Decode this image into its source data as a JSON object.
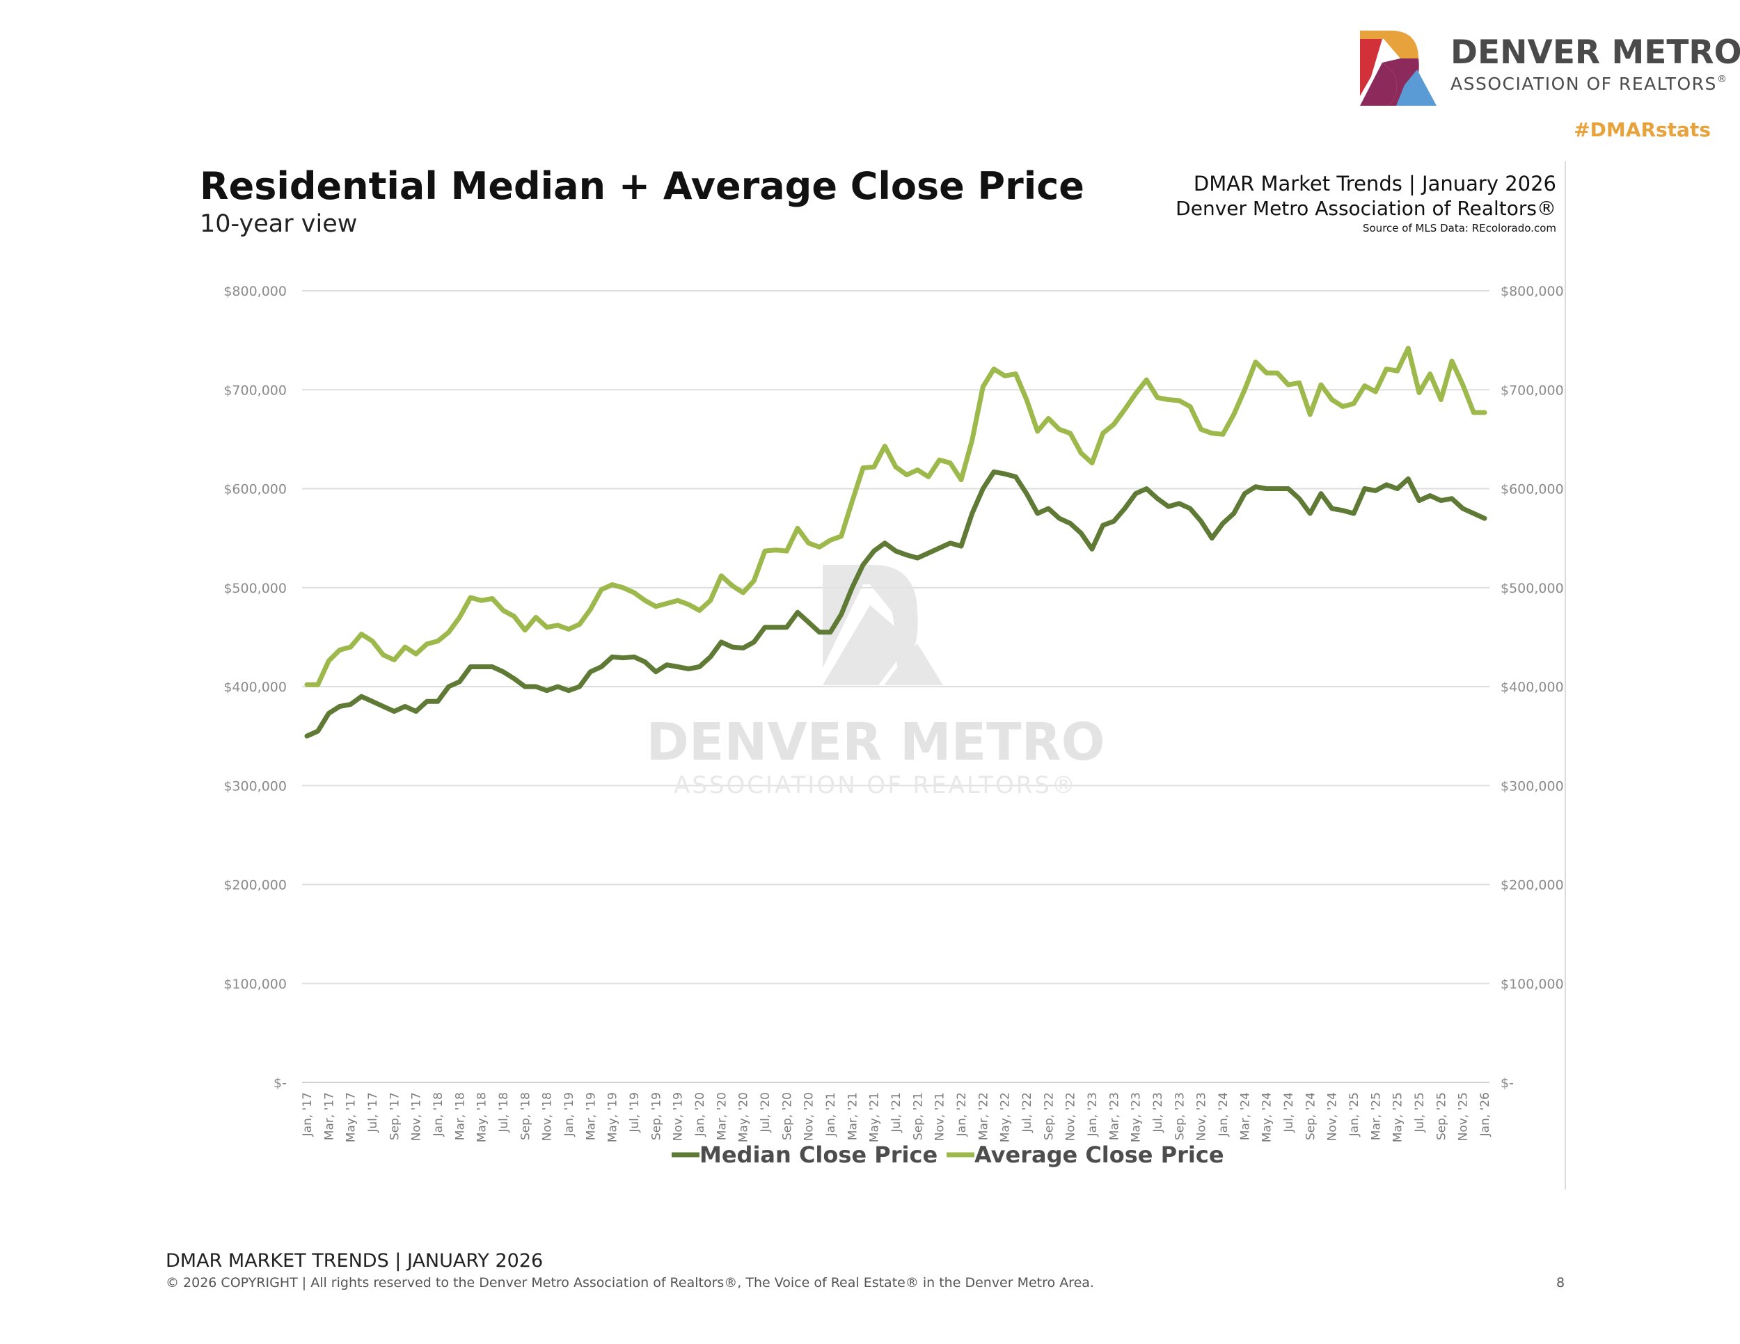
{
  "brand": {
    "name_line1": "DENVER METRO",
    "name_line2": "ASSOCIATION OF REALTORS",
    "registered_mark": "®",
    "hashtag": "#DMARstats",
    "colors": {
      "orange": "#e7a23b",
      "red": "#d2313a",
      "plum": "#8b2a5b",
      "blue": "#5b9bd5",
      "text": "#4a4a4a"
    }
  },
  "header": {
    "title": "Residential Median + Average Close Price",
    "subtitle": "10-year view",
    "source_line1": "DMAR Market Trends | January 2026",
    "source_line2": "Denver Metro Association of Realtors®",
    "source_line3": "Source of MLS Data: REcolorado.com"
  },
  "watermark": {
    "line1": "DENVER METRO",
    "line2": "ASSOCIATION OF REALTORS®"
  },
  "chart_data": {
    "type": "line",
    "title": "Residential Median + Average Close Price",
    "subtitle": "10-year view",
    "xlabel": "",
    "ylabel": "",
    "ylim": [
      0,
      800000
    ],
    "y_ticks": [
      0,
      100000,
      200000,
      300000,
      400000,
      500000,
      600000,
      700000,
      800000
    ],
    "y_tick_labels": [
      "$-",
      "$100,000",
      "$200,000",
      "$300,000",
      "$400,000",
      "$500,000",
      "$600,000",
      "$700,000",
      "$800,000"
    ],
    "dual_y_axis": true,
    "grid": true,
    "legend_position": "bottom",
    "x_labels": [
      "Jan, '17",
      "Mar, '17",
      "May, '17",
      "Jul, '17",
      "Sep, '17",
      "Nov, '17",
      "Jan, '18",
      "Mar, '18",
      "May, '18",
      "Jul, '18",
      "Sep, '18",
      "Nov, '18",
      "Jan, '19",
      "Mar, '19",
      "May, '19",
      "Jul, '19",
      "Sep, '19",
      "Nov, '19",
      "Jan, '20",
      "Mar, '20",
      "May, '20",
      "Jul, '20",
      "Sep, '20",
      "Nov, '20",
      "Jan, '21",
      "Mar, '21",
      "May, '21",
      "Jul, '21",
      "Sep, '21",
      "Nov, '21",
      "Jan, '22",
      "Mar, '22",
      "May, '22",
      "Jul, '22",
      "Sep, '22",
      "Nov, '22",
      "Jan, '23",
      "Mar, '23",
      "May, '23",
      "Jul, '23",
      "Sep, '23",
      "Nov, '23",
      "Jan, '24",
      "Mar, '24",
      "May, '24",
      "Jul, '24",
      "Sep, '24",
      "Nov, '24",
      "Jan, '25",
      "Mar, '25",
      "May, '25",
      "Jul, '25",
      "Sep, '25",
      "Nov, '25",
      "Jan, '26"
    ],
    "x_start": "Jan 2017",
    "x_end": "Jan 2026",
    "months": 109,
    "series": [
      {
        "name": "Median Close Price",
        "color": "#5e7a34",
        "values": [
          350000,
          355000,
          373000,
          380000,
          382000,
          390000,
          385000,
          380000,
          375000,
          380000,
          375000,
          385000,
          385000,
          400000,
          405000,
          420000,
          420000,
          420000,
          415000,
          408000,
          400000,
          400000,
          396000,
          400000,
          396000,
          400000,
          415000,
          420000,
          430000,
          429000,
          430000,
          425000,
          415000,
          422000,
          420000,
          418000,
          420000,
          430000,
          445000,
          440000,
          439000,
          445000,
          460000,
          460000,
          460000,
          475000,
          465000,
          455000,
          455000,
          473000,
          500000,
          523000,
          537000,
          545000,
          537000,
          533000,
          530000,
          535000,
          540000,
          545000,
          542000,
          575000,
          600000,
          617000,
          615000,
          612000,
          595000,
          575000,
          580000,
          570000,
          565000,
          555000,
          539000,
          563000,
          567000,
          580000,
          595000,
          600000,
          590000,
          582000,
          585000,
          580000,
          567000,
          550000,
          565000,
          575000,
          595000,
          602000,
          600000,
          600000,
          600000,
          590000,
          575000,
          595000,
          580000,
          578000,
          575000,
          600000,
          598000,
          604000,
          600000,
          610000,
          588000,
          593000,
          588000,
          590000,
          580000,
          575000,
          570000
        ]
      },
      {
        "name": "Average Close Price",
        "color": "#9db84b",
        "values": [
          402000,
          402000,
          426000,
          437000,
          440000,
          453000,
          446000,
          432000,
          427000,
          440000,
          433000,
          443000,
          446000,
          455000,
          470000,
          490000,
          487000,
          489000,
          477000,
          471000,
          457000,
          470000,
          460000,
          462000,
          458000,
          463000,
          478000,
          498000,
          503000,
          500000,
          495000,
          487000,
          481000,
          484000,
          487000,
          483000,
          477000,
          487000,
          512000,
          502000,
          495000,
          507000,
          537000,
          538000,
          537000,
          560000,
          545000,
          541000,
          548000,
          552000,
          587000,
          621000,
          622000,
          643000,
          622000,
          614000,
          619000,
          612000,
          629000,
          626000,
          609000,
          649000,
          703000,
          721000,
          714000,
          716000,
          690000,
          658000,
          671000,
          660000,
          656000,
          636000,
          626000,
          656000,
          665000,
          680000,
          696000,
          710000,
          692000,
          690000,
          689000,
          683000,
          660000,
          656000,
          655000,
          675000,
          700000,
          728000,
          717000,
          717000,
          705000,
          707000,
          675000,
          705000,
          690000,
          683000,
          686000,
          704000,
          698000,
          721000,
          719000,
          742000,
          697000,
          716000,
          690000,
          729000,
          705000,
          677000,
          677000
        ]
      }
    ]
  },
  "footer": {
    "title": "DMAR MARKET TRENDS | JANUARY 2026",
    "copyright": "© 2026 COPYRIGHT | All rights reserved to the Denver Metro Association of Realtors®, The Voice of Real Estate® in the Denver Metro Area.",
    "page_number": "8"
  }
}
